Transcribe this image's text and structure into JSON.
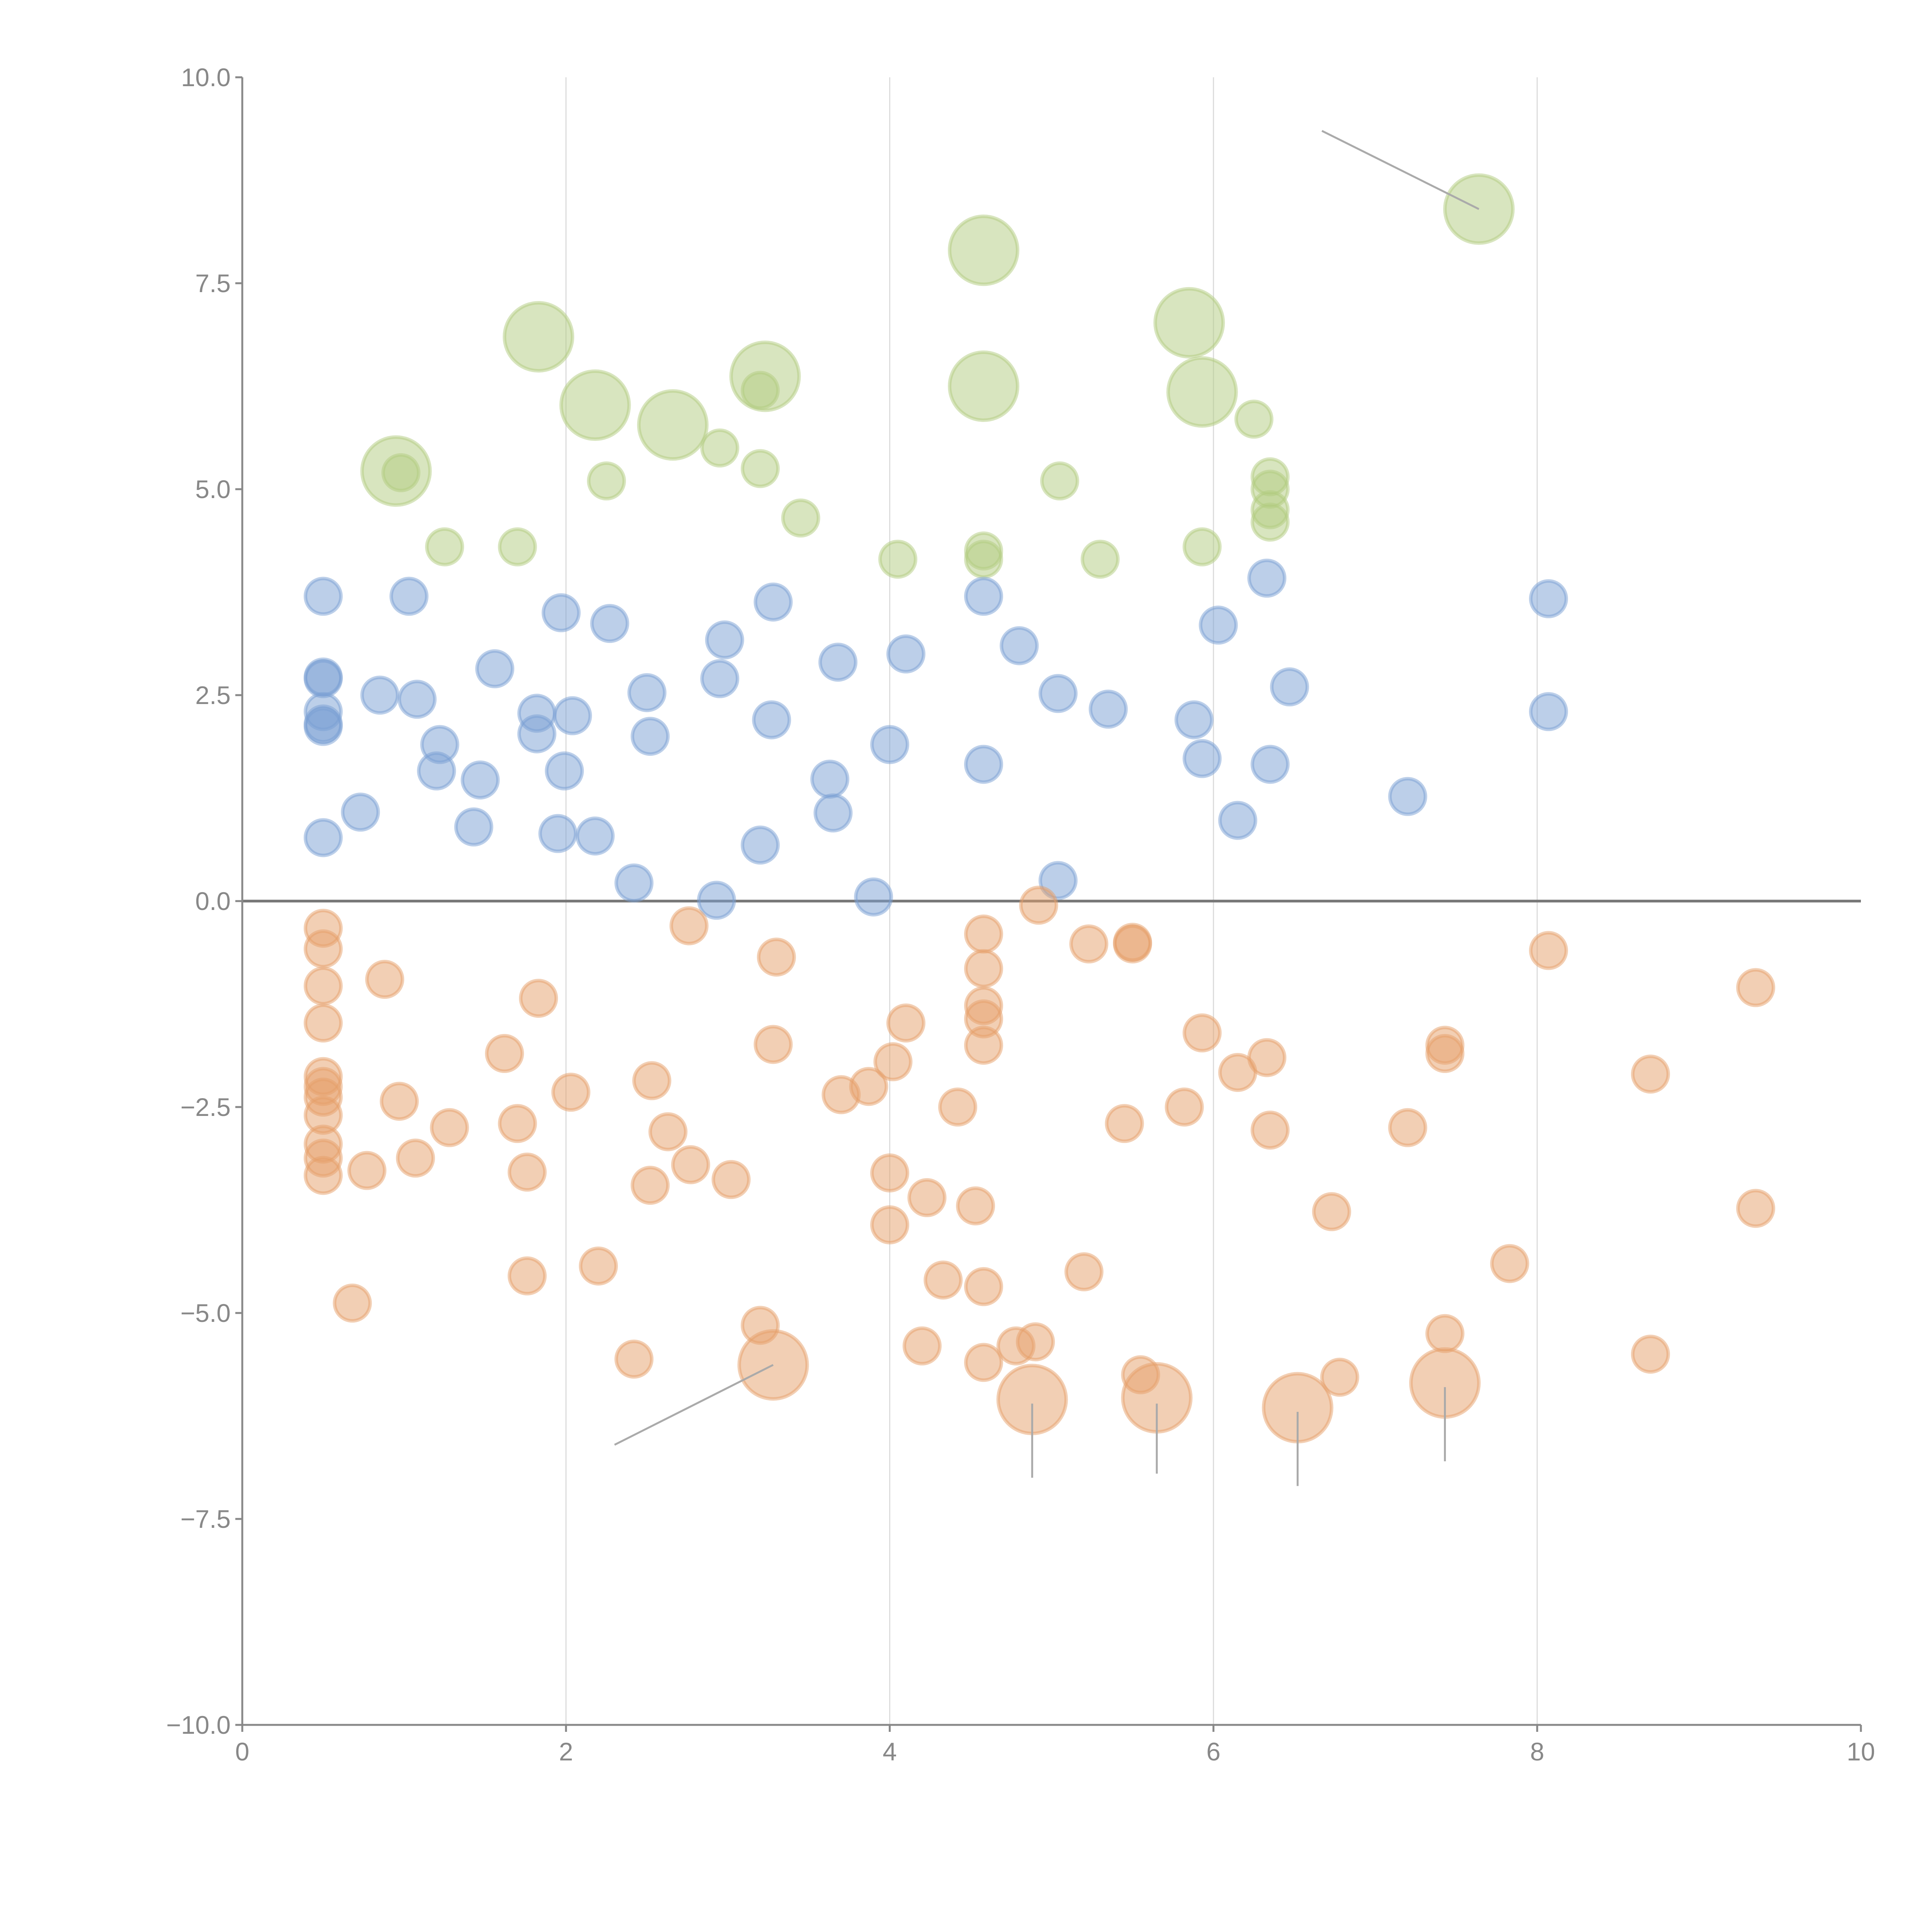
{
  "chart_data": {
    "type": "scatter",
    "title": "",
    "xlabel": "",
    "ylabel": "",
    "xlim": [
      0,
      10
    ],
    "ylim": [
      -10,
      10
    ],
    "xticks": [
      0,
      2,
      4,
      6,
      8,
      10
    ],
    "xtick_labels": [
      "0",
      "2",
      "4",
      "6",
      "8",
      "10"
    ],
    "yticks": [
      10,
      7.5,
      5,
      2.5,
      0,
      -2.5,
      -5,
      -7.5,
      -10
    ],
    "ytick_labels": [
      "10.0",
      "7.5",
      "5.0",
      "2.5",
      "0.0",
      "−2.5",
      "−5.0",
      "−7.5",
      "−10.0"
    ],
    "grid": "vertical",
    "reference_line_y": 0,
    "series": [
      {
        "name": "green",
        "color": "#b2cc80",
        "points": [
          [
            0.98,
            5.2
          ],
          [
            1.25,
            4.3
          ],
          [
            1.7,
            4.3
          ],
          [
            2.25,
            5.1
          ],
          [
            2.95,
            5.5
          ],
          [
            3.2,
            5.25
          ],
          [
            3.2,
            6.2
          ],
          [
            3.45,
            4.65
          ],
          [
            4.05,
            4.15
          ],
          [
            4.58,
            4.25
          ],
          [
            4.58,
            4.15
          ],
          [
            5.05,
            5.1
          ],
          [
            5.3,
            4.15
          ],
          [
            5.93,
            4.3
          ],
          [
            6.25,
            5.85
          ],
          [
            6.35,
            5.15
          ],
          [
            6.35,
            5.0
          ],
          [
            6.35,
            4.75
          ],
          [
            6.35,
            4.6
          ]
        ],
        "large_points": [
          [
            0.95,
            5.22
          ],
          [
            1.83,
            6.85
          ],
          [
            2.18,
            6.02
          ],
          [
            2.66,
            5.78
          ],
          [
            3.23,
            6.37
          ],
          [
            4.58,
            7.9
          ],
          [
            4.58,
            6.25
          ],
          [
            5.85,
            7.02
          ],
          [
            5.93,
            6.18
          ],
          [
            7.64,
            8.4
          ]
        ]
      },
      {
        "name": "blue",
        "color": "#7aa0d4",
        "points": [
          [
            0.5,
            3.7
          ],
          [
            0.5,
            2.72
          ],
          [
            0.5,
            2.7
          ],
          [
            0.5,
            2.3
          ],
          [
            0.5,
            2.15
          ],
          [
            0.5,
            2.12
          ],
          [
            0.5,
            0.77
          ],
          [
            0.73,
            1.08
          ],
          [
            0.85,
            2.5
          ],
          [
            1.03,
            3.7
          ],
          [
            1.08,
            2.45
          ],
          [
            1.2,
            1.58
          ],
          [
            1.22,
            1.9
          ],
          [
            1.43,
            0.9
          ],
          [
            1.47,
            1.47
          ],
          [
            1.56,
            2.82
          ],
          [
            1.82,
            2.28
          ],
          [
            1.82,
            2.03
          ],
          [
            1.95,
            0.82
          ],
          [
            1.97,
            3.5
          ],
          [
            1.99,
            1.58
          ],
          [
            2.04,
            2.25
          ],
          [
            2.18,
            0.79
          ],
          [
            2.27,
            3.37
          ],
          [
            2.42,
            0.22
          ],
          [
            2.5,
            2.53
          ],
          [
            2.52,
            2.0
          ],
          [
            2.93,
            0.01
          ],
          [
            2.95,
            2.7
          ],
          [
            2.98,
            3.17
          ],
          [
            3.2,
            0.68
          ],
          [
            3.27,
            2.2
          ],
          [
            3.28,
            3.63
          ],
          [
            3.63,
            1.48
          ],
          [
            3.65,
            1.07
          ],
          [
            3.68,
            2.9
          ],
          [
            3.9,
            0.05
          ],
          [
            4.0,
            1.9
          ],
          [
            4.1,
            3.0
          ],
          [
            4.58,
            3.7
          ],
          [
            4.58,
            1.66
          ],
          [
            4.8,
            3.1
          ],
          [
            5.04,
            2.52
          ],
          [
            5.04,
            0.25
          ],
          [
            5.35,
            2.33
          ],
          [
            5.88,
            2.2
          ],
          [
            5.93,
            1.73
          ],
          [
            6.03,
            3.35
          ],
          [
            6.15,
            0.98
          ],
          [
            6.33,
            3.92
          ],
          [
            6.35,
            1.66
          ],
          [
            6.47,
            2.6
          ],
          [
            7.2,
            1.27
          ],
          [
            8.07,
            3.67
          ],
          [
            8.07,
            2.3
          ]
        ],
        "large_points": []
      },
      {
        "name": "orange",
        "color": "#e6a06a",
        "points": [
          [
            0.5,
            -0.33
          ],
          [
            0.5,
            -0.58
          ],
          [
            0.5,
            -1.03
          ],
          [
            0.5,
            -1.48
          ],
          [
            0.5,
            -2.13
          ],
          [
            0.5,
            -2.25
          ],
          [
            0.5,
            -2.38
          ],
          [
            0.5,
            -2.6
          ],
          [
            0.5,
            -2.95
          ],
          [
            0.5,
            -3.12
          ],
          [
            0.5,
            -3.33
          ],
          [
            0.68,
            -4.88
          ],
          [
            0.77,
            -3.27
          ],
          [
            0.88,
            -0.95
          ],
          [
            0.97,
            -2.43
          ],
          [
            1.07,
            -3.12
          ],
          [
            1.28,
            -2.75
          ],
          [
            1.62,
            -1.85
          ],
          [
            1.7,
            -2.7
          ],
          [
            1.76,
            -3.29
          ],
          [
            1.76,
            -4.55
          ],
          [
            1.83,
            -1.18
          ],
          [
            2.03,
            -2.32
          ],
          [
            2.2,
            -4.43
          ],
          [
            2.42,
            -5.56
          ],
          [
            2.53,
            -2.18
          ],
          [
            2.52,
            -3.45
          ],
          [
            2.63,
            -2.8
          ],
          [
            2.76,
            -0.3
          ],
          [
            2.77,
            -3.2
          ],
          [
            3.02,
            -3.38
          ],
          [
            3.2,
            -5.15
          ],
          [
            3.28,
            -1.74
          ],
          [
            3.3,
            -0.68
          ],
          [
            3.7,
            -2.35
          ],
          [
            3.87,
            -2.25
          ],
          [
            4.0,
            -3.3
          ],
          [
            4.0,
            -3.93
          ],
          [
            4.02,
            -1.95
          ],
          [
            4.1,
            -1.48
          ],
          [
            4.2,
            -5.4
          ],
          [
            4.23,
            -3.6
          ],
          [
            4.33,
            -4.6
          ],
          [
            4.42,
            -2.5
          ],
          [
            4.53,
            -3.7
          ],
          [
            4.58,
            -0.4
          ],
          [
            4.58,
            -0.82
          ],
          [
            4.58,
            -1.27
          ],
          [
            4.58,
            -1.43
          ],
          [
            4.58,
            -1.75
          ],
          [
            4.58,
            -4.68
          ],
          [
            4.58,
            -5.6
          ],
          [
            4.78,
            -5.4
          ],
          [
            4.9,
            -5.35
          ],
          [
            4.92,
            -0.05
          ],
          [
            5.2,
            -4.5
          ],
          [
            5.23,
            -0.52
          ],
          [
            5.45,
            -2.7
          ],
          [
            5.5,
            -0.5
          ],
          [
            5.5,
            -0.52
          ],
          [
            5.55,
            -5.75
          ],
          [
            5.82,
            -2.5
          ],
          [
            5.93,
            -1.6
          ],
          [
            6.15,
            -2.08
          ],
          [
            6.33,
            -1.9
          ],
          [
            6.35,
            -2.78
          ],
          [
            6.73,
            -3.77
          ],
          [
            6.78,
            -5.78
          ],
          [
            7.2,
            -2.75
          ],
          [
            7.43,
            -1.75
          ],
          [
            7.43,
            -1.85
          ],
          [
            7.43,
            -5.25
          ],
          [
            7.83,
            -4.4
          ],
          [
            8.07,
            -0.6
          ],
          [
            8.7,
            -2.1
          ],
          [
            8.7,
            -5.5
          ],
          [
            9.35,
            -1.05
          ],
          [
            9.35,
            -3.73
          ]
        ],
        "large_points": [
          [
            3.28,
            -5.63
          ],
          [
            4.88,
            -6.05
          ],
          [
            5.65,
            -6.03
          ],
          [
            6.52,
            -6.15
          ],
          [
            7.43,
            -5.85
          ]
        ]
      }
    ],
    "leader_lines": [
      [
        [
          7.64,
          8.4
        ],
        [
          6.67,
          9.35
        ]
      ],
      [
        [
          3.28,
          -5.63
        ],
        [
          2.3,
          -6.6
        ]
      ],
      [
        [
          4.88,
          -6.1
        ],
        [
          4.88,
          -7.0
        ]
      ],
      [
        [
          5.65,
          -6.1
        ],
        [
          5.65,
          -6.95
        ]
      ],
      [
        [
          6.52,
          -6.2
        ],
        [
          6.52,
          -7.1
        ]
      ],
      [
        [
          7.43,
          -5.9
        ],
        [
          7.43,
          -6.8
        ]
      ]
    ]
  }
}
